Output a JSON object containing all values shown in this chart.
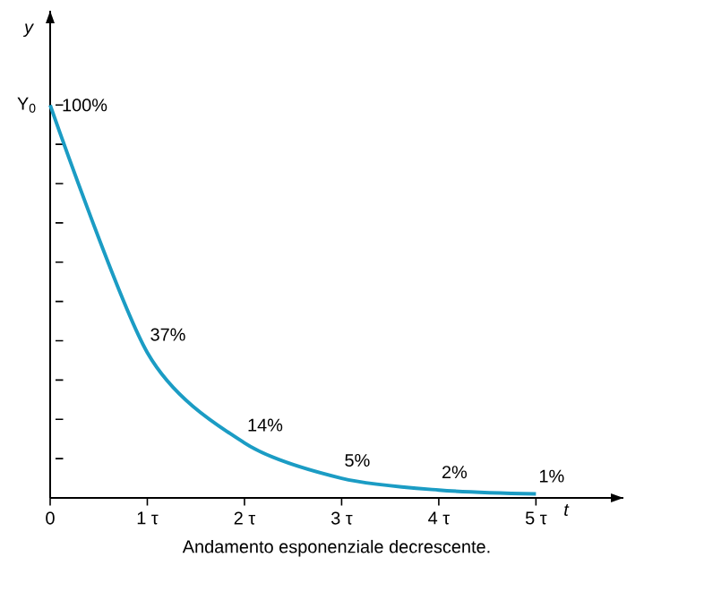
{
  "chart_data": {
    "type": "line",
    "x": [
      0,
      1,
      2,
      3,
      4,
      5
    ],
    "series": [
      {
        "color": "#1b9cc4",
        "values": [
          100,
          37,
          14,
          5,
          2,
          1
        ],
        "value_labels": [
          "100%",
          "37%",
          "14%",
          "5%",
          "2%",
          "1%"
        ]
      }
    ],
    "xlabel": "t",
    "ylabel": "y",
    "xlim": [
      0,
      5.9
    ],
    "ylim": [
      0,
      124
    ],
    "xticks": [
      0,
      {
        "value": 1,
        "label": "1 τ"
      },
      {
        "value": 2,
        "label": "2 τ"
      },
      {
        "value": 3,
        "label": "3 τ"
      },
      {
        "value": 4,
        "label": "4 τ"
      },
      {
        "value": 5,
        "label": "5 τ"
      }
    ],
    "yticks": [
      {
        "value": 10,
        "label": null
      },
      {
        "value": 20,
        "label": null
      },
      {
        "value": 30,
        "label": null
      },
      {
        "value": 40,
        "label": null
      },
      {
        "value": 50,
        "label": null
      },
      {
        "value": 60,
        "label": null
      },
      {
        "value": 70,
        "label": null
      },
      {
        "value": 80,
        "label": null
      },
      {
        "value": 90,
        "label": null
      },
      {
        "value": 100,
        "label": null
      }
    ],
    "marker": "none",
    "annotations": [
      {
        "text": "Y$_{0}$",
        "x": 0,
        "y": 100
      },
      "Andamento esponenziale decrescente."
    ]
  }
}
